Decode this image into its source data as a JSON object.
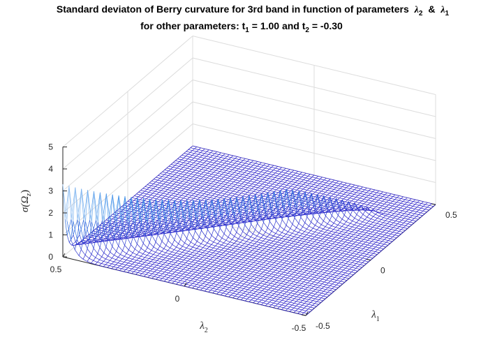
{
  "chart_data": {
    "type": "surface",
    "title": {
      "line1": "Standard deviaton of Berry curvature for 3rd band in function of parameters",
      "line1_sym_a": "λ",
      "line1_sub_a": "2",
      "line1_join": "&",
      "line1_sym_b": "λ",
      "line1_sub_b": "1",
      "line2_prefix": "for other parameters: t",
      "line2_sub_1": "1",
      "line2_mid": " = 1.00 and t",
      "line2_sub_2": "2",
      "line2_suffix": " = -0.30"
    },
    "xlabel": {
      "symbol": "λ",
      "sub": "2"
    },
    "ylabel": {
      "symbol": "λ",
      "sub": "1"
    },
    "zlabel": {
      "prefix": "σ(Ω",
      "sub": "z",
      "suffix": ")"
    },
    "x_ticks": [
      "0.5",
      "0",
      "-0.5"
    ],
    "y_ticks": [
      "-0.5",
      "0",
      "0.5"
    ],
    "z_ticks": [
      "0",
      "1",
      "2",
      "3",
      "4",
      "5"
    ],
    "xlim": [
      -0.5,
      0.5
    ],
    "ylim": [
      -0.5,
      0.5
    ],
    "zlim": [
      0,
      5
    ],
    "grid": true,
    "colors": {
      "low": "#2a1fc8",
      "mid": "#2f86e6",
      "high": "#ffffff",
      "axis": "#262626",
      "grid": "#dcdcdc"
    },
    "features": {
      "ridge_line": "lambda2 = -lambda1",
      "ridge_peak_value": 3.3,
      "ridge_low_value": 1.6,
      "background_value": 0
    }
  }
}
